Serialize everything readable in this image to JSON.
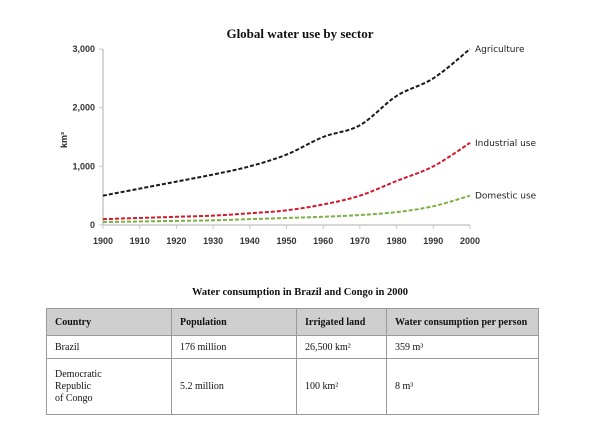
{
  "chart_data": {
    "type": "line",
    "title": "Global water use by sector",
    "xlabel": "",
    "ylabel": "km³",
    "x": [
      1900,
      1910,
      1920,
      1930,
      1940,
      1950,
      1960,
      1970,
      1980,
      1990,
      2000
    ],
    "xticks": [
      "1900",
      "1910",
      "1920",
      "1930",
      "1940",
      "1950",
      "1960",
      "1970",
      "1980",
      "1990",
      "2000"
    ],
    "yticks": [
      "0",
      "1,000",
      "2,000",
      "3,000"
    ],
    "ylim": [
      0,
      3000
    ],
    "grid": false,
    "legend": "inline labels at line ends (right)",
    "series": [
      {
        "name": "Agriculture",
        "color": "#1a1a1a",
        "style": "dashed",
        "values": [
          500,
          620,
          740,
          860,
          1000,
          1200,
          1500,
          1700,
          2200,
          2500,
          3000
        ]
      },
      {
        "name": "Industrial use",
        "color": "#d3192b",
        "style": "dashed",
        "values": [
          100,
          120,
          140,
          160,
          200,
          250,
          350,
          500,
          750,
          1000,
          1400
        ]
      },
      {
        "name": "Domestic use",
        "color": "#7bb043",
        "style": "dashed",
        "values": [
          50,
          60,
          70,
          80,
          100,
          120,
          140,
          170,
          220,
          320,
          500
        ]
      }
    ]
  },
  "table": {
    "title": "Water consumption in Brazil and Congo in 2000",
    "headers": [
      "Country",
      "Population",
      "Irrigated land",
      "Water consumption per person"
    ],
    "rows": [
      [
        "Brazil",
        "176 million",
        "26,500 km²",
        "359 m³"
      ],
      [
        "Democratic\nRepublic\nof Congo",
        "5.2 million",
        "100 km²",
        "8 m³"
      ]
    ]
  }
}
